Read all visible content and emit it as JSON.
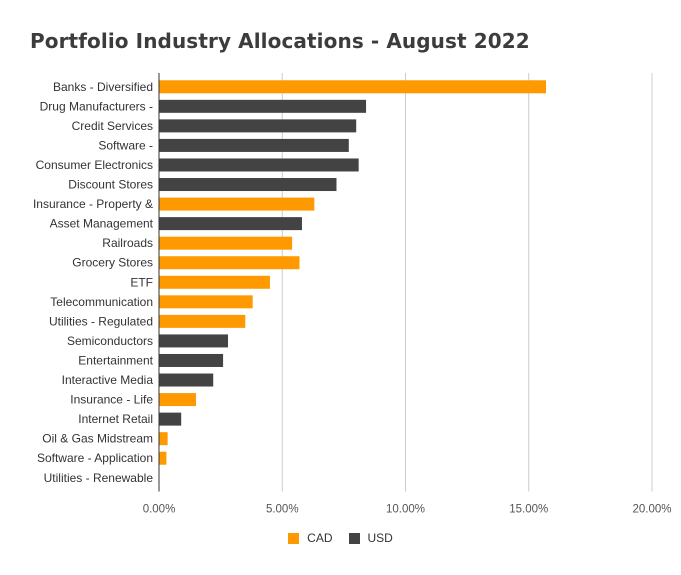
{
  "chart_data": {
    "type": "bar",
    "orientation": "horizontal",
    "title": "Portfolio Industry Allocations - August 2022",
    "categories": [
      "Banks - Diversified",
      "Drug Manufacturers -",
      "Credit Services",
      "Software -",
      "Consumer Electronics",
      "Discount Stores",
      "Insurance - Property &",
      "Asset Management",
      "Railroads",
      "Grocery Stores",
      "ETF",
      "Telecommunication",
      "Utilities - Regulated",
      "Semiconductors",
      "Entertainment",
      "Interactive Media",
      "Insurance - Life",
      "Internet Retail",
      "Oil & Gas Midstream",
      "Software - Application",
      "Utilities - Renewable"
    ],
    "values": [
      15.7,
      8.4,
      8.0,
      7.7,
      8.1,
      7.2,
      6.3,
      5.8,
      5.4,
      5.7,
      4.5,
      3.8,
      3.5,
      2.8,
      2.6,
      2.2,
      1.5,
      0.9,
      0.35,
      0.3,
      0.0
    ],
    "currency": [
      "CAD",
      "USD",
      "USD",
      "USD",
      "USD",
      "USD",
      "CAD",
      "USD",
      "CAD",
      "CAD",
      "CAD",
      "CAD",
      "CAD",
      "USD",
      "USD",
      "USD",
      "CAD",
      "USD",
      "CAD",
      "CAD",
      "CAD"
    ],
    "series": [
      {
        "name": "CAD",
        "color": "#ff9900"
      },
      {
        "name": "USD",
        "color": "#434343"
      }
    ],
    "xlim": [
      0,
      20
    ],
    "xticks": [
      "0.00%",
      "5.00%",
      "10.00%",
      "15.00%",
      "20.00%"
    ],
    "xlabel": "",
    "ylabel": "",
    "grid": true,
    "legend_position": "bottom"
  }
}
